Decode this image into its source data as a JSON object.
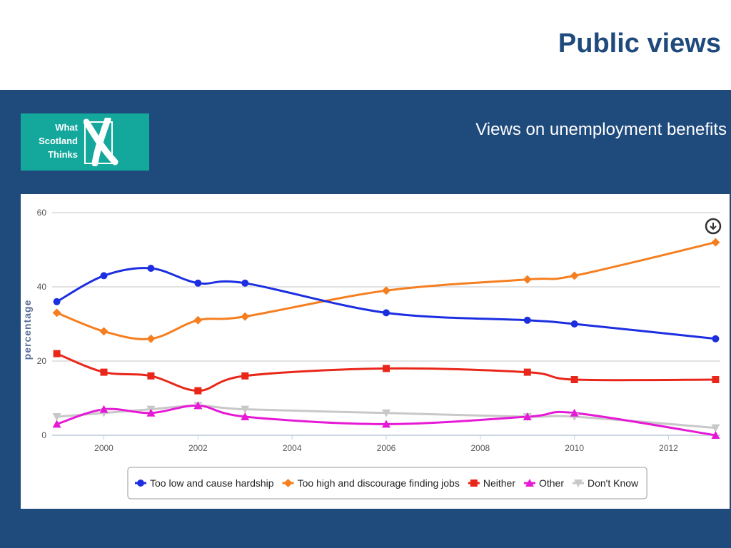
{
  "page": {
    "title": "Public views",
    "subtitle": "Views on unemployment benefits"
  },
  "logo": {
    "lines": [
      "What",
      "Scotland",
      "Thinks"
    ],
    "mark": "X",
    "color": "#14a89c"
  },
  "icons": {
    "download": "download-icon"
  },
  "colors": {
    "band": "#1f4a7c",
    "title": "#1f4a7c"
  },
  "chart_data": {
    "type": "line",
    "title": "",
    "xlabel": "",
    "ylabel": "percentage",
    "xlim": [
      1999,
      2013
    ],
    "ylim": [
      0,
      60
    ],
    "x_ticks": [
      2000,
      2002,
      2004,
      2006,
      2008,
      2010,
      2012
    ],
    "y_ticks": [
      0,
      20,
      40,
      60
    ],
    "grid": true,
    "legend_position": "bottom",
    "series": [
      {
        "name": "Too low and cause hardship",
        "color": "#1c2fe0",
        "marker": "circle",
        "x": [
          1999,
          2000,
          2001,
          2002,
          2003,
          2006,
          2009,
          2010,
          2013
        ],
        "y": [
          36,
          43,
          45,
          41,
          41,
          33,
          31,
          30,
          26
        ]
      },
      {
        "name": "Too high and discourage finding jobs",
        "color": "#f57f20",
        "marker": "diamond",
        "x": [
          1999,
          2000,
          2001,
          2002,
          2003,
          2006,
          2009,
          2010,
          2013
        ],
        "y": [
          33,
          28,
          26,
          31,
          32,
          39,
          42,
          43,
          52
        ]
      },
      {
        "name": "Neither",
        "color": "#e8271a",
        "marker": "square",
        "x": [
          1999,
          2000,
          2001,
          2002,
          2003,
          2006,
          2009,
          2010,
          2013
        ],
        "y": [
          22,
          17,
          16,
          12,
          16,
          18,
          17,
          15,
          15
        ]
      },
      {
        "name": "Other",
        "color": "#e61ad6",
        "marker": "triangle",
        "x": [
          1999,
          2000,
          2001,
          2002,
          2003,
          2006,
          2009,
          2010,
          2013
        ],
        "y": [
          3,
          7,
          6,
          8,
          5,
          3,
          5,
          6,
          0
        ]
      },
      {
        "name": "Don't Know",
        "color": "#c8c8c8",
        "marker": "triangle-down",
        "x": [
          1999,
          2000,
          2001,
          2002,
          2003,
          2006,
          2009,
          2010,
          2013
        ],
        "y": [
          5,
          6,
          7,
          8,
          7,
          6,
          5,
          5,
          2
        ]
      }
    ]
  }
}
